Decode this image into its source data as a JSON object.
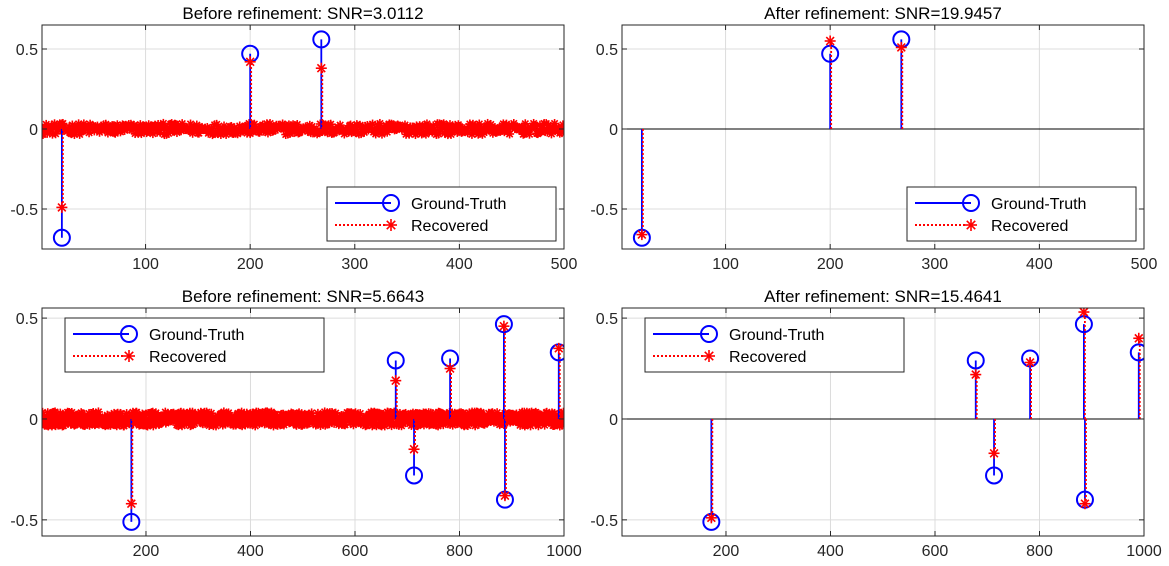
{
  "chart_data": [
    {
      "type": "stem",
      "title": "Before refinement: SNR=3.0112",
      "xlim": [
        1,
        500
      ],
      "ylim": [
        -0.75,
        0.65
      ],
      "xticks": [
        100,
        200,
        300,
        400,
        500
      ],
      "yticks": [
        -0.5,
        0,
        0.5
      ],
      "xtick_labels": [
        "100",
        "200",
        "300",
        "400",
        "500"
      ],
      "ytick_labels": [
        "-0.5",
        "0",
        "0.5"
      ],
      "grid": true,
      "legend": {
        "position": "bottom-right",
        "entries": [
          "Ground-Truth",
          "Recovered"
        ]
      },
      "series": [
        {
          "name": "Ground-Truth",
          "color": "#0000ff",
          "marker": "circle",
          "points": [
            [
              20,
              -0.68
            ],
            [
              200,
              0.47
            ],
            [
              268,
              0.56
            ]
          ]
        },
        {
          "name": "Recovered",
          "color": "#ff0000",
          "marker": "asterisk",
          "line": "dotted",
          "points": [
            [
              20,
              -0.49
            ],
            [
              200,
              0.42
            ],
            [
              268,
              0.38
            ]
          ],
          "noise": {
            "amplitude": 0.035,
            "count": 500,
            "note": "dense small-amplitude estimates across all indices"
          }
        }
      ]
    },
    {
      "type": "stem",
      "title": "After refinement: SNR=19.9457",
      "xlim": [
        1,
        500
      ],
      "ylim": [
        -0.75,
        0.65
      ],
      "xticks": [
        100,
        200,
        300,
        400,
        500
      ],
      "yticks": [
        -0.5,
        0,
        0.5
      ],
      "xtick_labels": [
        "100",
        "200",
        "300",
        "400",
        "500"
      ],
      "ytick_labels": [
        "-0.5",
        "0",
        "0.5"
      ],
      "grid": true,
      "legend": {
        "position": "bottom-right",
        "entries": [
          "Ground-Truth",
          "Recovered"
        ]
      },
      "series": [
        {
          "name": "Ground-Truth",
          "color": "#0000ff",
          "marker": "circle",
          "points": [
            [
              20,
              -0.68
            ],
            [
              200,
              0.47
            ],
            [
              268,
              0.56
            ]
          ]
        },
        {
          "name": "Recovered",
          "color": "#ff0000",
          "marker": "asterisk",
          "line": "dotted",
          "points": [
            [
              20,
              -0.66
            ],
            [
              200,
              0.55
            ],
            [
              268,
              0.51
            ]
          ]
        }
      ]
    },
    {
      "type": "stem",
      "title": "Before refinement: SNR=5.6643",
      "xlim": [
        1,
        1000
      ],
      "ylim": [
        -0.58,
        0.55
      ],
      "xticks": [
        200,
        400,
        600,
        800,
        1000
      ],
      "yticks": [
        -0.5,
        0,
        0.5
      ],
      "xtick_labels": [
        "200",
        "400",
        "600",
        "800",
        "1000"
      ],
      "ytick_labels": [
        "-0.5",
        "0",
        "0.5"
      ],
      "grid": true,
      "legend": {
        "position": "top-left",
        "entries": [
          "Ground-Truth",
          "Recovered"
        ]
      },
      "series": [
        {
          "name": "Ground-Truth",
          "color": "#0000ff",
          "marker": "circle",
          "points": [
            [
              172,
              -0.51
            ],
            [
              678,
              0.29
            ],
            [
              713,
              -0.28
            ],
            [
              782,
              0.3
            ],
            [
              885,
              0.47
            ],
            [
              887,
              -0.4
            ],
            [
              990,
              0.33
            ]
          ]
        },
        {
          "name": "Recovered",
          "color": "#ff0000",
          "marker": "asterisk",
          "line": "dotted",
          "points": [
            [
              172,
              -0.42
            ],
            [
              678,
              0.19
            ],
            [
              713,
              -0.15
            ],
            [
              782,
              0.25
            ],
            [
              885,
              0.46
            ],
            [
              887,
              -0.38
            ],
            [
              990,
              0.35
            ]
          ],
          "noise": {
            "amplitude": 0.035,
            "count": 1000,
            "note": "dense small-amplitude estimates across all indices"
          }
        }
      ]
    },
    {
      "type": "stem",
      "title": "After refinement: SNR=15.4641",
      "xlim": [
        1,
        1000
      ],
      "ylim": [
        -0.58,
        0.55
      ],
      "xticks": [
        200,
        400,
        600,
        800,
        1000
      ],
      "yticks": [
        -0.5,
        0,
        0.5
      ],
      "xtick_labels": [
        "200",
        "400",
        "600",
        "800",
        "1000"
      ],
      "ytick_labels": [
        "-0.5",
        "0",
        "0.5"
      ],
      "grid": true,
      "legend": {
        "position": "top-left",
        "entries": [
          "Ground-Truth",
          "Recovered"
        ]
      },
      "series": [
        {
          "name": "Ground-Truth",
          "color": "#0000ff",
          "marker": "circle",
          "points": [
            [
              172,
              -0.51
            ],
            [
              678,
              0.29
            ],
            [
              713,
              -0.28
            ],
            [
              782,
              0.3
            ],
            [
              885,
              0.47
            ],
            [
              887,
              -0.4
            ],
            [
              990,
              0.33
            ]
          ]
        },
        {
          "name": "Recovered",
          "color": "#ff0000",
          "marker": "asterisk",
          "line": "dotted",
          "points": [
            [
              172,
              -0.49
            ],
            [
              678,
              0.22
            ],
            [
              713,
              -0.17
            ],
            [
              782,
              0.28
            ],
            [
              885,
              0.53
            ],
            [
              887,
              -0.42
            ],
            [
              990,
              0.4
            ]
          ]
        }
      ]
    }
  ]
}
